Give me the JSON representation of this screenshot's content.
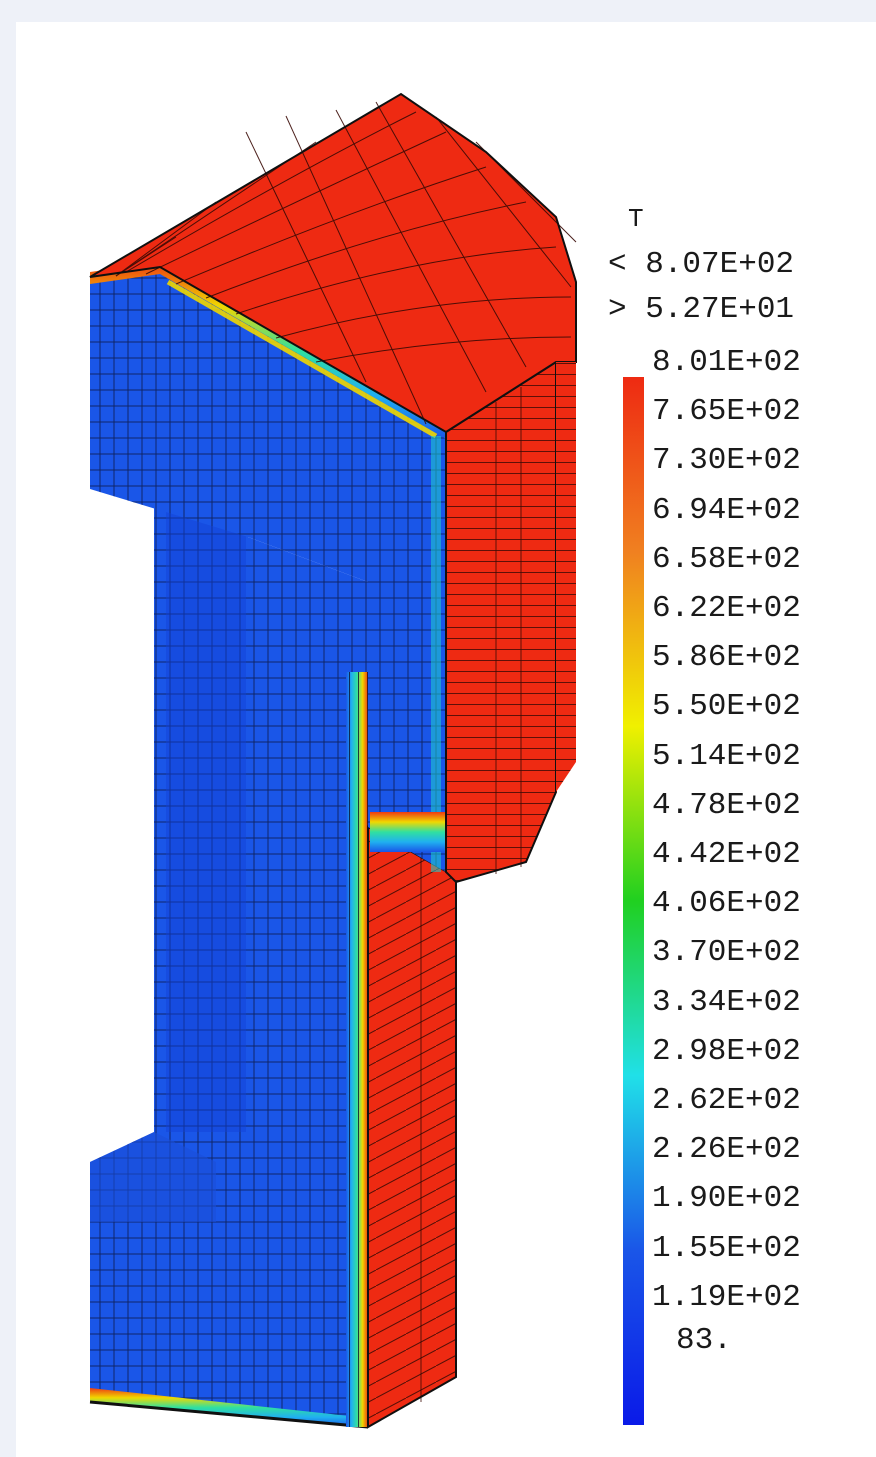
{
  "legend": {
    "variable": "T",
    "max_line": "< 8.07E+02",
    "min_line": "> 5.27E+01",
    "levels": [
      "8.01E+02",
      "7.65E+02",
      "7.30E+02",
      "6.94E+02",
      "6.58E+02",
      "6.22E+02",
      "5.86E+02",
      "5.50E+02",
      "5.14E+02",
      "4.78E+02",
      "4.42E+02",
      "4.06E+02",
      "3.70E+02",
      "3.34E+02",
      "2.98E+02",
      "2.62E+02",
      "2.26E+02",
      "1.90E+02",
      "1.55E+02",
      "1.19E+02"
    ],
    "last_level": "83.",
    "colors": {
      "hot": "#ee2a12",
      "orange": "#f08020",
      "yellow": "#f0f000",
      "green": "#20d020",
      "cyan": "#20e0e8",
      "blue": "#1a56e8",
      "deep_blue": "#0a1ae8"
    }
  }
}
